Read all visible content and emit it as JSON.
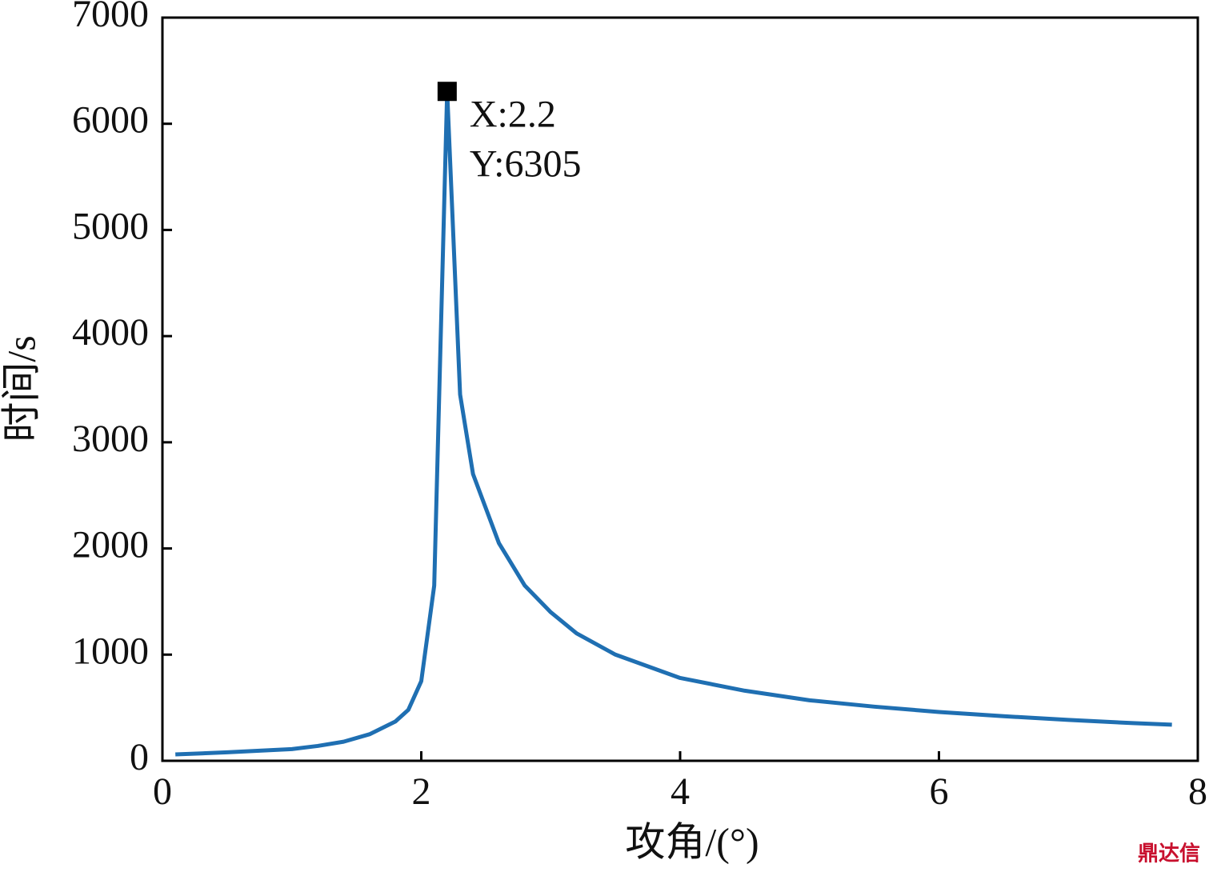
{
  "chart_data": {
    "type": "line",
    "x_label": "攻角/(°)",
    "y_label": "时间/s",
    "x": [
      0.1,
      0.5,
      1.0,
      1.2,
      1.4,
      1.6,
      1.8,
      1.9,
      2.0,
      2.1,
      2.2,
      2.3,
      2.4,
      2.6,
      2.8,
      3.0,
      3.2,
      3.5,
      4.0,
      4.5,
      5.0,
      5.5,
      6.0,
      6.5,
      7.0,
      7.5,
      7.8
    ],
    "series": [
      {
        "color": "#1f6fb2",
        "values": [
          60,
          80,
          110,
          140,
          180,
          250,
          370,
          480,
          750,
          1650,
          6305,
          3450,
          2700,
          2050,
          1650,
          1400,
          1200,
          1000,
          780,
          660,
          570,
          510,
          460,
          420,
          385,
          355,
          340
        ]
      }
    ],
    "xlim": [
      0,
      8
    ],
    "xticks": [
      0,
      2,
      4,
      6,
      8
    ],
    "ylim": [
      0,
      7000
    ],
    "yticks": [
      0,
      1000,
      2000,
      3000,
      4000,
      5000,
      6000,
      7000
    ],
    "marker": {
      "x": 2.2,
      "y": 6305,
      "color": "#000000"
    },
    "annotations": [
      "X:2.2",
      "Y:6305"
    ],
    "watermark": "鼎达信"
  }
}
